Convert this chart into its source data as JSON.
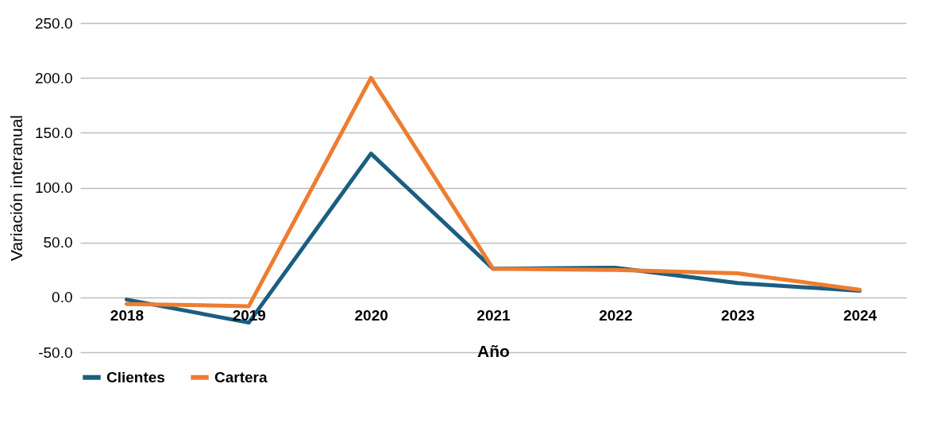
{
  "chart_data": {
    "type": "line",
    "xlabel": "Año",
    "ylabel": "Variación interanual",
    "categories": [
      "2018",
      "2019",
      "2020",
      "2021",
      "2022",
      "2023",
      "2024"
    ],
    "series": [
      {
        "name": "Clientes",
        "color": "#1b5e80",
        "values": [
          -2,
          -23,
          131,
          26,
          27,
          13,
          6
        ]
      },
      {
        "name": "Cartera",
        "color": "#ed7d31",
        "values": [
          -6,
          -8,
          200,
          26,
          25,
          22,
          7
        ]
      }
    ],
    "ylim": [
      -50,
      250
    ],
    "yticks": [
      {
        "value": -50,
        "label": "-50.0"
      },
      {
        "value": 0,
        "label": "0.0"
      },
      {
        "value": 50,
        "label": "50.0"
      },
      {
        "value": 100,
        "label": "100.0"
      },
      {
        "value": 150,
        "label": "150.0"
      },
      {
        "value": 200,
        "label": "200.0"
      },
      {
        "value": 250,
        "label": "250.0"
      }
    ],
    "grid": "y",
    "legend": "bottom",
    "marker": "none",
    "line_style": "solid"
  }
}
